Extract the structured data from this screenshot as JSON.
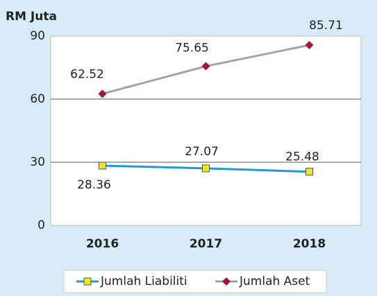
{
  "chart_data": {
    "type": "line",
    "y_label": "RM Juta",
    "categories": [
      "2016",
      "2017",
      "2018"
    ],
    "series": [
      {
        "name": "Jumlah Liabiliti",
        "color": "#1e9ad6",
        "marker": "square",
        "marker_color": "#f2e51c",
        "values": [
          28.36,
          27.07,
          25.48
        ]
      },
      {
        "name": "Jumlah Aset",
        "color": "#a59fb4",
        "marker": "diamond",
        "marker_color": "#a3172b",
        "values": [
          62.52,
          75.65,
          85.71
        ]
      }
    ],
    "ylim": [
      0,
      90
    ],
    "yticks": [
      0,
      30,
      60,
      90
    ],
    "grid": true,
    "legend": "bottom"
  }
}
